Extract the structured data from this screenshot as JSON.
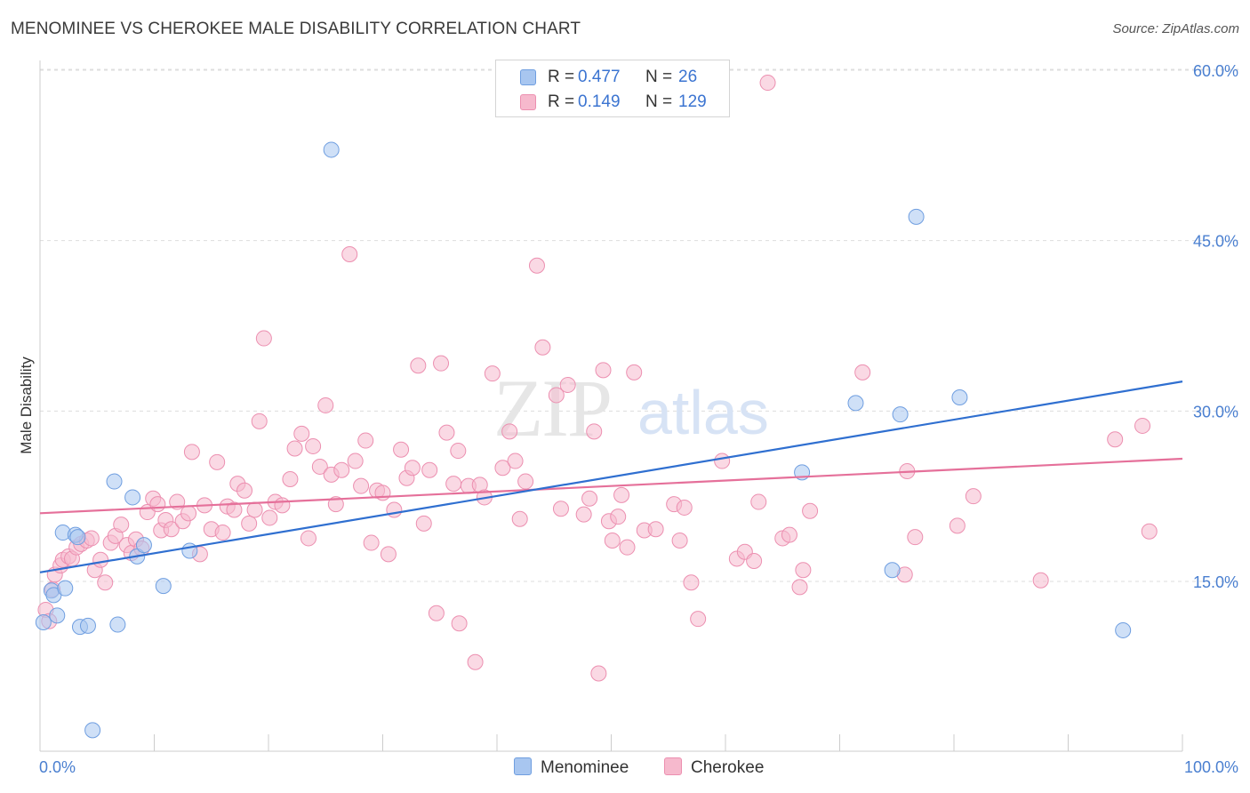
{
  "title": "MENOMINEE VS CHEROKEE MALE DISABILITY CORRELATION CHART",
  "source": "Source: ZipAtlas.com",
  "watermark": {
    "zip": "ZIP",
    "atlas": "atlas"
  },
  "colors": {
    "menominee_fill": "#a8c6f0",
    "menominee_stroke": "#6f9ee0",
    "menominee_line": "#2f6fd0",
    "cherokee_fill": "#f6b9cd",
    "cherokee_stroke": "#ec8fb0",
    "cherokee_line": "#e5709a",
    "grid": "#dddddd",
    "tick_text": "#4a7fd0"
  },
  "legend": {
    "rows": [
      {
        "r_label": "R =",
        "r_value": "0.477",
        "n_label": "N =",
        "n_value": "26"
      },
      {
        "r_label": "R =",
        "r_value": "0.149",
        "n_label": "N =",
        "n_value": "129"
      }
    ]
  },
  "bottom_legend": [
    "Menominee",
    "Cherokee"
  ],
  "chart_data": {
    "type": "scatter",
    "xlabel": "",
    "ylabel": "Male Disability",
    "xlim": [
      0,
      100
    ],
    "ylim": [
      0,
      62
    ],
    "x_tick_labels": [
      "0.0%",
      "100.0%"
    ],
    "y_ticks": [
      15,
      30,
      45,
      60
    ],
    "y_tick_labels": [
      "15.0%",
      "30.0%",
      "45.0%",
      "60.0%"
    ],
    "grid": true,
    "series": [
      {
        "name": "Menominee",
        "r": 0.477,
        "n": 26,
        "trend": {
          "x0": 0,
          "y0": 15.8,
          "x1": 100,
          "y1": 32.6
        },
        "points": [
          [
            0.3,
            11.4
          ],
          [
            1.0,
            14.2
          ],
          [
            1.2,
            13.8
          ],
          [
            1.5,
            12.0
          ],
          [
            2.0,
            19.3
          ],
          [
            2.2,
            14.4
          ],
          [
            3.1,
            19.1
          ],
          [
            3.3,
            18.9
          ],
          [
            3.5,
            11.0
          ],
          [
            4.2,
            11.1
          ],
          [
            4.6,
            1.9
          ],
          [
            6.5,
            23.8
          ],
          [
            6.8,
            11.2
          ],
          [
            8.1,
            22.4
          ],
          [
            8.5,
            17.2
          ],
          [
            9.1,
            18.2
          ],
          [
            10.8,
            14.6
          ],
          [
            13.1,
            17.7
          ],
          [
            25.5,
            53.0
          ],
          [
            66.7,
            24.6
          ],
          [
            71.4,
            30.7
          ],
          [
            74.6,
            16.0
          ],
          [
            75.3,
            29.7
          ],
          [
            76.7,
            47.1
          ],
          [
            80.5,
            31.2
          ],
          [
            94.8,
            10.7
          ]
        ]
      },
      {
        "name": "Cherokee",
        "r": 0.149,
        "n": 129,
        "trend": {
          "x0": 0,
          "y0": 21.0,
          "x1": 100,
          "y1": 25.8
        },
        "points": [
          [
            0.5,
            12.5
          ],
          [
            0.8,
            11.5
          ],
          [
            1.1,
            14.3
          ],
          [
            1.3,
            15.6
          ],
          [
            1.8,
            16.4
          ],
          [
            2.0,
            16.9
          ],
          [
            2.5,
            17.2
          ],
          [
            2.8,
            17.0
          ],
          [
            3.2,
            18.0
          ],
          [
            3.6,
            18.3
          ],
          [
            4.1,
            18.6
          ],
          [
            4.5,
            18.8
          ],
          [
            4.8,
            16.0
          ],
          [
            5.3,
            16.9
          ],
          [
            5.7,
            14.9
          ],
          [
            6.2,
            18.4
          ],
          [
            6.6,
            19.0
          ],
          [
            7.1,
            20.0
          ],
          [
            7.6,
            18.2
          ],
          [
            8.0,
            17.5
          ],
          [
            8.4,
            18.7
          ],
          [
            8.9,
            17.9
          ],
          [
            9.4,
            21.1
          ],
          [
            9.9,
            22.3
          ],
          [
            10.3,
            21.8
          ],
          [
            10.6,
            19.5
          ],
          [
            11.0,
            20.4
          ],
          [
            11.5,
            19.6
          ],
          [
            12.0,
            22.0
          ],
          [
            12.5,
            20.3
          ],
          [
            13.0,
            21.0
          ],
          [
            13.3,
            26.4
          ],
          [
            14.0,
            17.4
          ],
          [
            14.4,
            21.7
          ],
          [
            15.0,
            19.6
          ],
          [
            15.5,
            25.5
          ],
          [
            16.0,
            19.3
          ],
          [
            16.4,
            21.6
          ],
          [
            17.0,
            21.3
          ],
          [
            17.3,
            23.6
          ],
          [
            17.9,
            23.0
          ],
          [
            18.3,
            20.1
          ],
          [
            18.8,
            21.3
          ],
          [
            19.2,
            29.1
          ],
          [
            19.6,
            36.4
          ],
          [
            20.1,
            20.6
          ],
          [
            20.6,
            22.0
          ],
          [
            21.2,
            21.7
          ],
          [
            21.9,
            24.0
          ],
          [
            22.3,
            26.7
          ],
          [
            22.9,
            28.0
          ],
          [
            23.5,
            18.8
          ],
          [
            23.9,
            26.9
          ],
          [
            24.5,
            25.1
          ],
          [
            25.0,
            30.5
          ],
          [
            25.5,
            24.4
          ],
          [
            25.9,
            21.8
          ],
          [
            26.4,
            24.8
          ],
          [
            27.1,
            43.8
          ],
          [
            27.6,
            25.6
          ],
          [
            28.1,
            23.4
          ],
          [
            28.5,
            27.4
          ],
          [
            29.0,
            18.4
          ],
          [
            29.5,
            23.0
          ],
          [
            30.0,
            22.8
          ],
          [
            30.5,
            17.4
          ],
          [
            31.0,
            21.3
          ],
          [
            31.6,
            26.6
          ],
          [
            32.1,
            24.1
          ],
          [
            32.6,
            25.0
          ],
          [
            33.1,
            34.0
          ],
          [
            33.6,
            20.1
          ],
          [
            34.1,
            24.8
          ],
          [
            34.7,
            12.2
          ],
          [
            35.1,
            34.2
          ],
          [
            35.6,
            28.1
          ],
          [
            36.2,
            23.6
          ],
          [
            36.6,
            26.5
          ],
          [
            36.7,
            11.3
          ],
          [
            37.5,
            23.4
          ],
          [
            38.1,
            7.9
          ],
          [
            38.5,
            23.5
          ],
          [
            38.9,
            22.4
          ],
          [
            39.6,
            33.3
          ],
          [
            40.5,
            25.0
          ],
          [
            41.1,
            28.2
          ],
          [
            41.6,
            25.6
          ],
          [
            42.0,
            20.5
          ],
          [
            42.5,
            23.8
          ],
          [
            43.5,
            42.8
          ],
          [
            44.0,
            35.6
          ],
          [
            45.2,
            31.4
          ],
          [
            45.6,
            21.4
          ],
          [
            46.2,
            32.3
          ],
          [
            47.6,
            20.9
          ],
          [
            48.1,
            22.3
          ],
          [
            48.5,
            28.2
          ],
          [
            48.9,
            6.9
          ],
          [
            49.3,
            33.6
          ],
          [
            49.8,
            20.3
          ],
          [
            50.1,
            18.6
          ],
          [
            50.6,
            20.7
          ],
          [
            50.9,
            22.6
          ],
          [
            51.4,
            18.0
          ],
          [
            52.0,
            33.4
          ],
          [
            52.9,
            19.5
          ],
          [
            53.9,
            19.6
          ],
          [
            55.5,
            21.8
          ],
          [
            56.0,
            18.6
          ],
          [
            56.4,
            21.5
          ],
          [
            57.0,
            14.9
          ],
          [
            57.6,
            11.7
          ],
          [
            59.7,
            25.6
          ],
          [
            61.0,
            17.0
          ],
          [
            61.7,
            17.6
          ],
          [
            62.5,
            16.8
          ],
          [
            62.9,
            22.0
          ],
          [
            63.7,
            58.9
          ],
          [
            65.0,
            18.8
          ],
          [
            65.6,
            19.1
          ],
          [
            66.5,
            14.5
          ],
          [
            66.8,
            16.0
          ],
          [
            67.4,
            21.2
          ],
          [
            72.0,
            33.4
          ],
          [
            75.7,
            15.6
          ],
          [
            75.9,
            24.7
          ],
          [
            76.6,
            18.9
          ],
          [
            80.3,
            19.9
          ],
          [
            81.7,
            22.5
          ],
          [
            87.6,
            15.1
          ],
          [
            94.1,
            27.5
          ],
          [
            96.5,
            28.7
          ],
          [
            97.1,
            19.4
          ]
        ]
      }
    ]
  }
}
